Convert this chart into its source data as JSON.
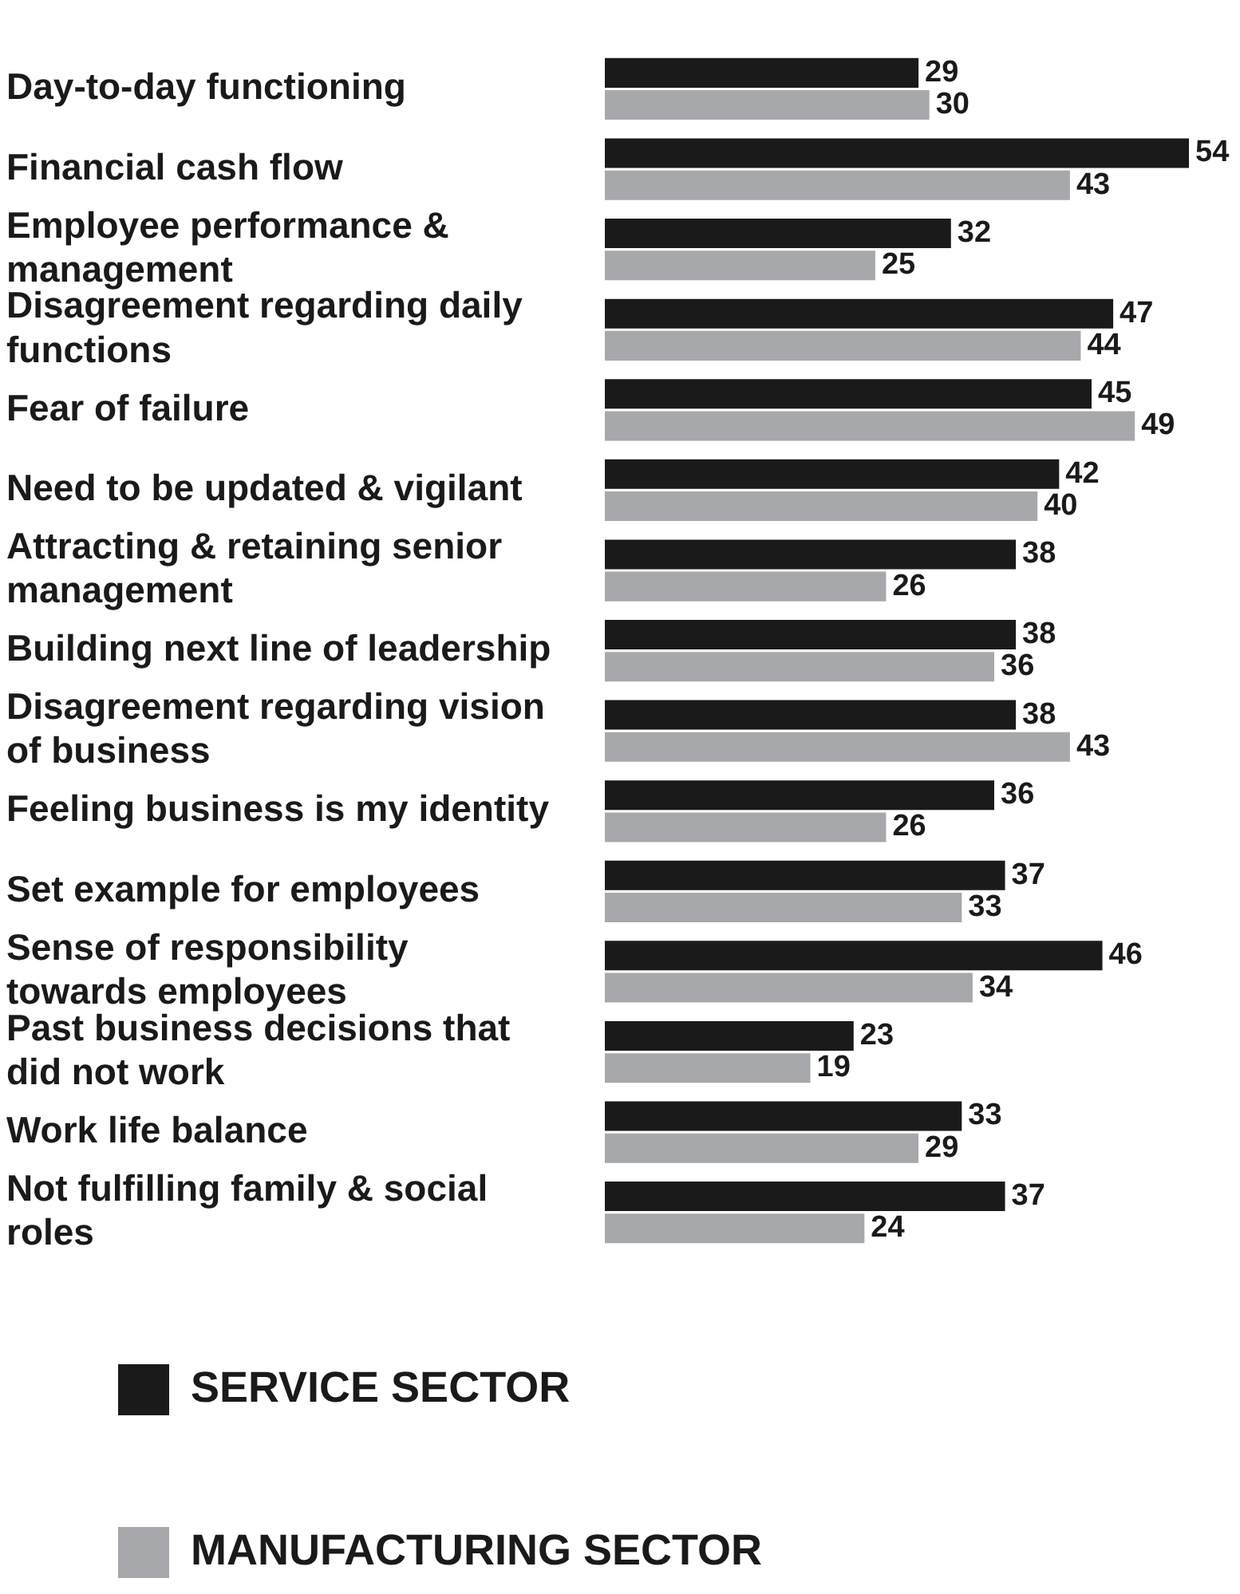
{
  "chart_data": {
    "type": "bar",
    "orientation": "horizontal",
    "categories": [
      "Day-to-day functioning",
      "Financial cash flow",
      "Employee performance & management",
      "Disagreement regarding daily functions",
      "Fear of failure",
      "Need to be updated & vigilant",
      "Attracting & retaining senior management",
      "Building next line of leadership",
      "Disagreement regarding vision of business",
      "Feeling business is my identity",
      "Set example for employees",
      "Sense of responsibility towards employees",
      "Past business decisions that did not work",
      "Work life balance",
      "Not fulfilling family & social roles"
    ],
    "series": [
      {
        "name": "SERVICE SECTOR",
        "color": "#1a1a1a",
        "values": [
          29,
          54,
          32,
          47,
          45,
          42,
          38,
          38,
          38,
          36,
          37,
          46,
          23,
          33,
          37
        ]
      },
      {
        "name": "MANUFACTURING SECTOR",
        "color": "#a7a8ab",
        "values": [
          30,
          43,
          25,
          44,
          49,
          40,
          26,
          36,
          43,
          26,
          33,
          34,
          19,
          29,
          24
        ]
      }
    ],
    "data_labels": true,
    "legend": "bottom",
    "tick_labels": "y",
    "grid": false
  }
}
